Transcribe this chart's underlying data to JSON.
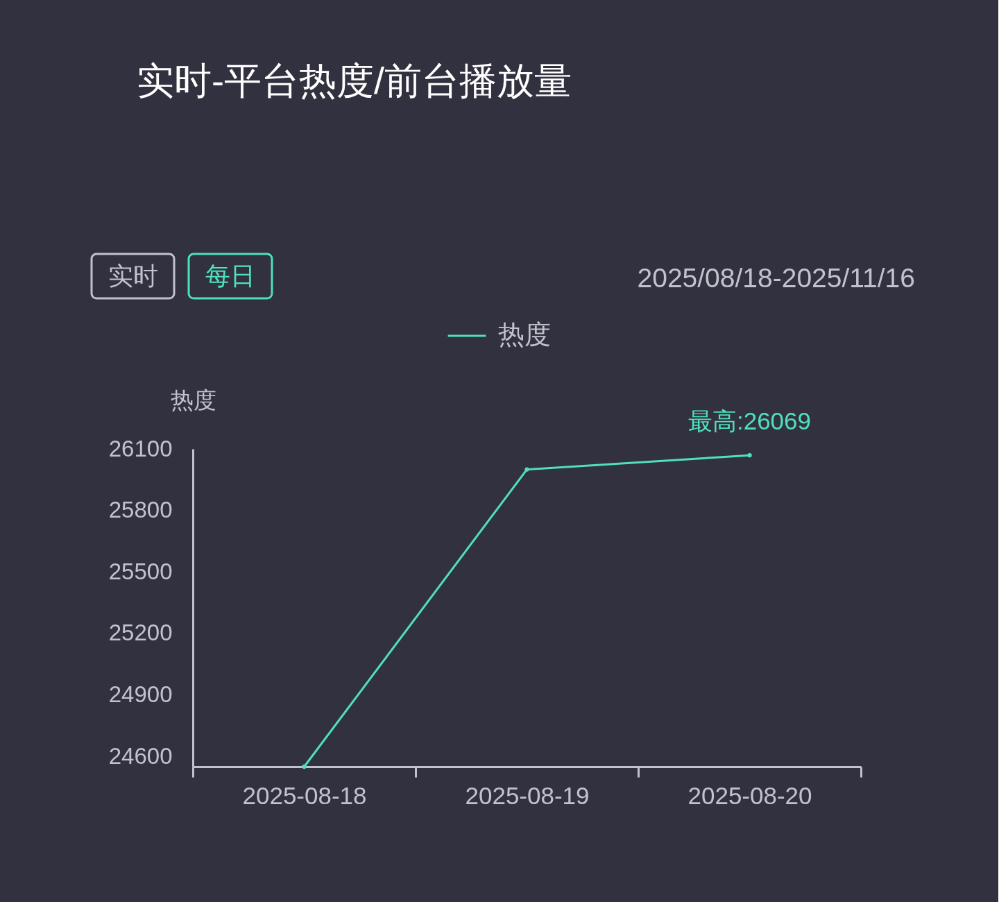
{
  "chart_data": {
    "type": "line",
    "title": "实时-平台热度/前台播放量",
    "ylabel": "热度",
    "categories": [
      "2025-08-18",
      "2025-08-19",
      "2025-08-20"
    ],
    "series": [
      {
        "name": "热度",
        "color": "#4fe0bd",
        "values": [
          24550,
          26000,
          26069
        ]
      }
    ],
    "ylim": [
      24550,
      26100
    ],
    "yticks": [
      24600,
      24900,
      25200,
      25500,
      25800,
      26100
    ],
    "annotations": [
      "实时",
      "每日",
      "2025/08/18-2025/11/16",
      {
        "text": "最高:26069",
        "x": "2025-08-20",
        "y": 26069
      }
    ],
    "legend": "top",
    "marker": "circle"
  }
}
